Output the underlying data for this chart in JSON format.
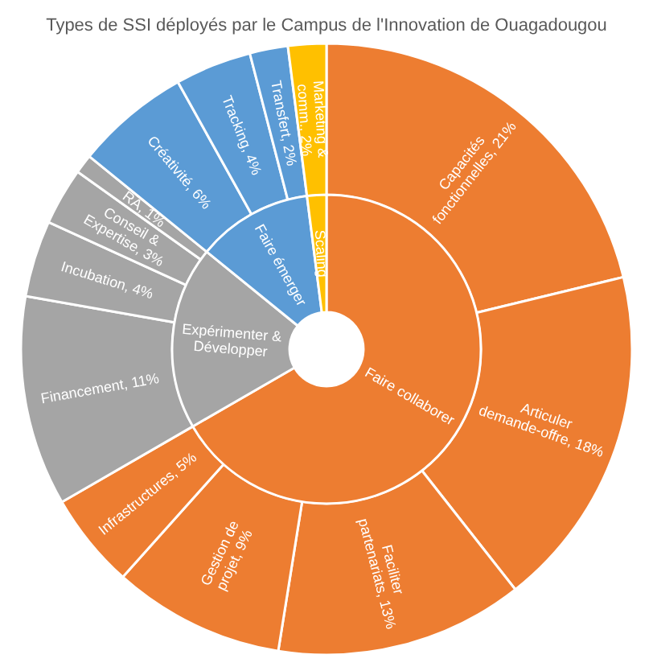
{
  "chart_data": [
    {
      "type": "donut",
      "title": "Types de SSI déployés par le Campus de l'Innovation de Ouagadougou",
      "categories": [
        "Capacités fonctionnelles",
        "Articuler demande-offre",
        "Faciliter partenariats",
        "Gestion de projet",
        "Infrastructures",
        "Financement",
        "Incubation",
        "Conseil & Expertise",
        "RA",
        "Créativité",
        "Tracking",
        "Transfert",
        "Marketing & comm."
      ],
      "values": [
        21,
        18,
        13,
        9,
        5,
        11,
        4,
        3,
        1,
        6,
        4,
        2,
        2
      ],
      "value_labels": [
        "21%",
        "18%",
        "13%",
        "9%",
        "5%",
        "11%",
        "4%",
        "3%",
        "1%",
        "6%",
        "4%",
        "2%",
        "2%"
      ],
      "colors": [
        "#ed7d31",
        "#ed7d31",
        "#ed7d31",
        "#ed7d31",
        "#ed7d31",
        "#a5a5a5",
        "#a5a5a5",
        "#a5a5a5",
        "#a5a5a5",
        "#5b9bd5",
        "#5b9bd5",
        "#5b9bd5",
        "#ffc000"
      ]
    },
    {
      "type": "donut",
      "categories": [
        "Faire collaborer",
        "Expérimenter & Développer",
        "Faire émerger",
        "Scaling"
      ],
      "values": [
        66,
        19,
        12,
        2
      ],
      "colors": [
        "#ed7d31",
        "#a5a5a5",
        "#5b9bd5",
        "#ffc000"
      ]
    }
  ]
}
